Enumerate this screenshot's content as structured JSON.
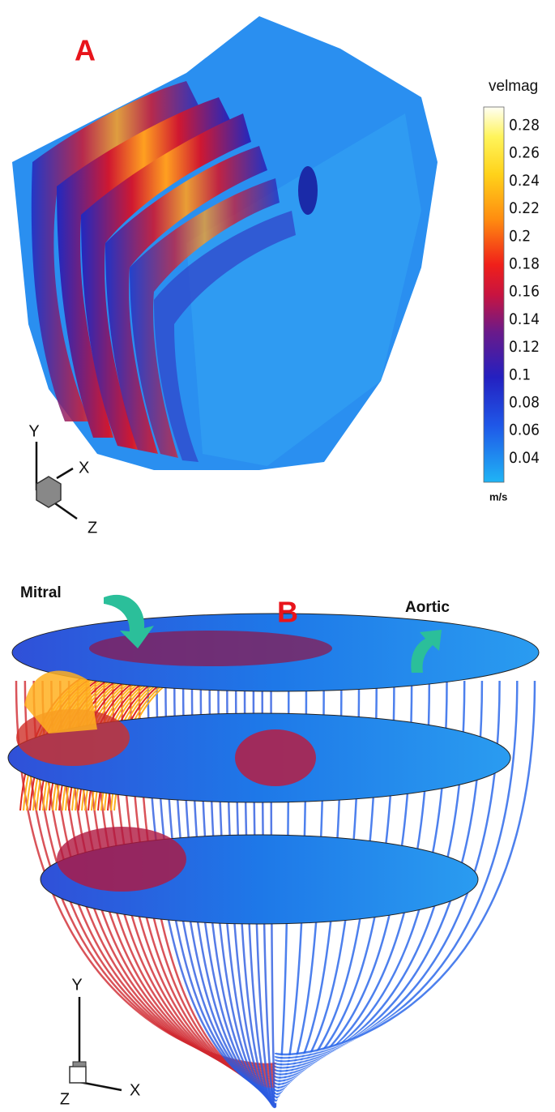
{
  "panel_a": {
    "label": "A",
    "colorbar": {
      "title": "velmag",
      "ticks": [
        0.28,
        0.26,
        0.24,
        0.22,
        0.2,
        0.18,
        0.16,
        0.14,
        0.12,
        0.1,
        0.08,
        0.06,
        0.04
      ],
      "unit": "m/s"
    },
    "axes": {
      "y": "Y",
      "x": "X",
      "z": "Z"
    }
  },
  "panel_b": {
    "label": "B",
    "mitral": "Mitral",
    "aortic": "Aortic",
    "axes": {
      "y": "Y",
      "x": "X",
      "z": "Z"
    }
  }
}
